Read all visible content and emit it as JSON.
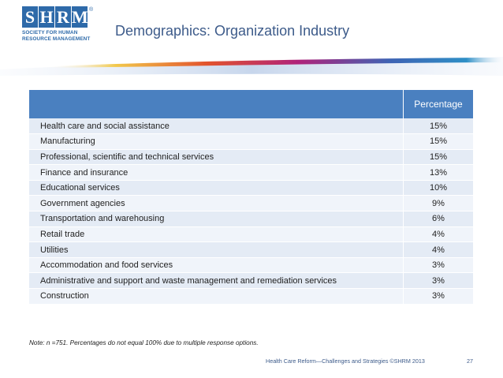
{
  "logo": {
    "letters": [
      "S",
      "H",
      "R",
      "M"
    ],
    "registered": "®",
    "tagline_line1": "SOCIETY FOR HUMAN",
    "tagline_line2": "RESOURCE MANAGEMENT"
  },
  "slide": {
    "title": "Demographics: Organization Industry"
  },
  "table": {
    "header_label": "",
    "header_value": "Percentage",
    "rows": [
      {
        "label": "Health care and social assistance",
        "value": "15%"
      },
      {
        "label": "Manufacturing",
        "value": "15%"
      },
      {
        "label": "Professional, scientific and technical services",
        "value": "15%"
      },
      {
        "label": "Finance and insurance",
        "value": "13%"
      },
      {
        "label": "Educational services",
        "value": "10%"
      },
      {
        "label": "Government agencies",
        "value": "9%"
      },
      {
        "label": "Transportation and warehousing",
        "value": "6%"
      },
      {
        "label": "Retail trade",
        "value": "4%"
      },
      {
        "label": "Utilities",
        "value": "4%"
      },
      {
        "label": "Accommodation and food services",
        "value": "3%"
      },
      {
        "label": "Administrative and support and waste management and remediation services",
        "value": "3%"
      },
      {
        "label": "Construction",
        "value": "3%"
      }
    ]
  },
  "note": "Note: n =751. Percentages do not equal 100% due to multiple response options.",
  "footer": {
    "text": "Health Care Reform—Challenges and Strategies ©SHRM 2013",
    "page_number": "27"
  },
  "colors": {
    "header_blue": "#4a80c0",
    "title_blue": "#3d5b8a",
    "row_light": "#e4ebf5"
  }
}
